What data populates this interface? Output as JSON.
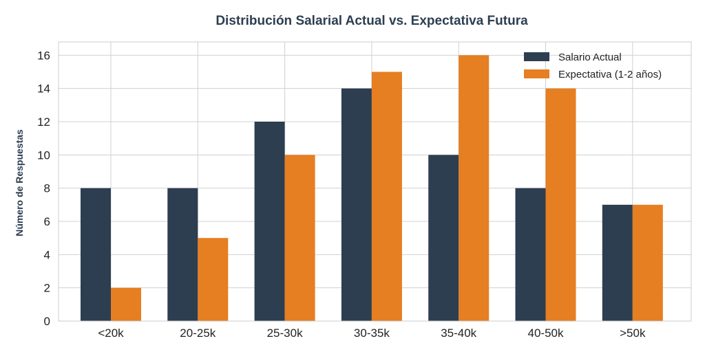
{
  "chart_data": {
    "type": "bar",
    "title": "Distribución Salarial Actual vs. Expectativa Futura",
    "xlabel": "",
    "ylabel": "Número de Respuestas",
    "categories": [
      "<20k",
      "20-25k",
      "25-30k",
      "30-35k",
      "35-40k",
      "40-50k",
      ">50k"
    ],
    "series": [
      {
        "name": "Salario Actual",
        "values": [
          8,
          8,
          12,
          14,
          10,
          8,
          7
        ],
        "color": "#2c3e50"
      },
      {
        "name": "Expectativa (1-2 años)",
        "values": [
          2,
          5,
          10,
          15,
          16,
          14,
          7
        ],
        "color": "#e67e22"
      }
    ],
    "ylim": [
      0,
      16.8
    ],
    "yticks": [
      0,
      2,
      4,
      6,
      8,
      10,
      12,
      14,
      16
    ],
    "grid": true,
    "legend": "top-right"
  }
}
